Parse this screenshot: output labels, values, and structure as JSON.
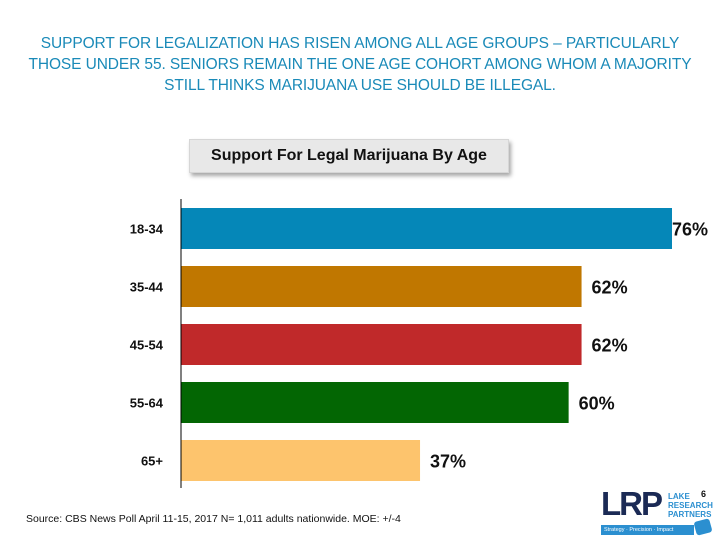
{
  "headline": {
    "lines": [
      "SUPPORT FOR LEGALIZATION HAS RISEN AMONG ALL AGE GROUPS – PARTICULARLY",
      "THOSE UNDER 55. SENIORS REMAIN THE ONE AGE COHORT AMONG WHOM A MAJORITY",
      "STILL THINKS MARIJUANA USE SHOULD BE ILLEGAL."
    ]
  },
  "chart_data": {
    "type": "bar",
    "orientation": "horizontal",
    "title": "Support For Legal Marijuana By Age",
    "categories": [
      "18-34",
      "35-44",
      "45-54",
      "55-64",
      "65+"
    ],
    "values": [
      76,
      62,
      62,
      60,
      37
    ],
    "value_labels": [
      "76%",
      "62%",
      "62%",
      "60%",
      "37%"
    ],
    "colors": [
      "#0587b8",
      "#c07700",
      "#c0292a",
      "#036603",
      "#fdc46d"
    ],
    "xlabel": "",
    "ylabel": "",
    "xlim": [
      0,
      78
    ],
    "grid": false,
    "legend": "none"
  },
  "footer": {
    "source": "Source: CBS News Poll April 11-15, 2017 N= 1,011 adults nationwide. MOE: +/-4",
    "page_number": "6"
  },
  "logo": {
    "mark": "LRP",
    "words": [
      "LAKE",
      "RESEARCH",
      "PARTNERS"
    ],
    "tagline": "Strategy · Precision · Impact"
  }
}
